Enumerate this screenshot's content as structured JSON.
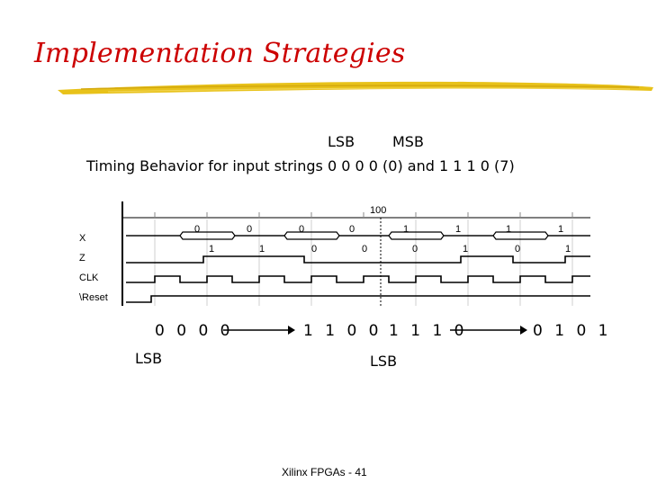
{
  "slide": {
    "title": "Implementation Strategies",
    "lsb_label": "LSB",
    "msb_label": "MSB",
    "caption": "Timing Behavior for input strings 0 0 0 0 (0) and 1 1 1 0 (7)",
    "footer": "Xilinx FPGAs - 41",
    "colors": {
      "title": "#cc0000",
      "underline": "#e8c21a"
    }
  },
  "timing_diagram": {
    "time_marker": "100",
    "signals": [
      "X",
      "Z",
      "CLK",
      "\\Reset"
    ],
    "x_values_top": [
      "0",
      "0",
      "0",
      "0",
      "1",
      "1",
      "1",
      "1"
    ],
    "z_values": [
      "1",
      "1",
      "0",
      "0",
      "0",
      "1",
      "0",
      "1"
    ]
  },
  "sequence": {
    "states": [
      "0 0 0 0",
      "1 1 0 0",
      "1 1 1 0",
      "0 1 0 1"
    ],
    "lsb_marks": [
      "LSB",
      "LSB"
    ]
  }
}
